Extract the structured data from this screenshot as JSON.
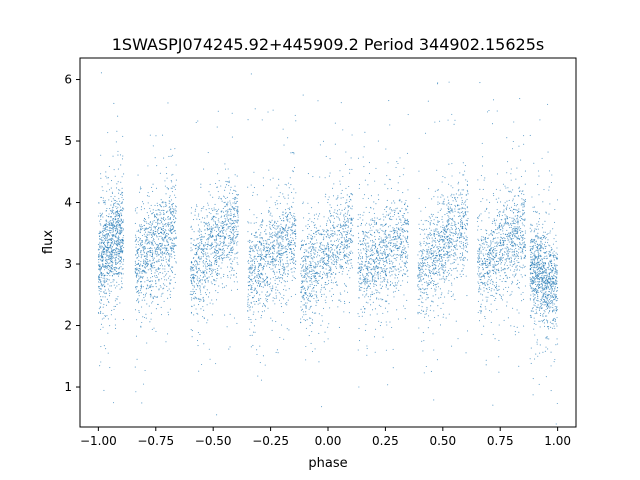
{
  "chart_data": {
    "type": "scatter",
    "title": "1SWASPJ074245.92+445909.2 Period 344902.15625s",
    "xlabel": "phase",
    "ylabel": "flux",
    "xlim": [
      -1.08,
      1.08
    ],
    "ylim": [
      0.35,
      6.35
    ],
    "xticks": [
      -1.0,
      -0.75,
      -0.5,
      -0.25,
      0.0,
      0.25,
      0.5,
      0.75,
      1.0
    ],
    "xtick_labels": [
      "−1.00",
      "−0.75",
      "−0.50",
      "−0.25",
      "0.00",
      "0.25",
      "0.50",
      "0.75",
      "1.00"
    ],
    "yticks": [
      1,
      2,
      3,
      4,
      5,
      6
    ],
    "ytick_labels": [
      "1",
      "2",
      "3",
      "4",
      "5",
      "6"
    ],
    "grid": false,
    "legend": "none",
    "point_color": "#1f77b4",
    "clusters": [
      {
        "phase_start": -1.0,
        "phase_end": -0.89,
        "flux_start": 3.05,
        "flux_end": 3.55
      },
      {
        "phase_start": -0.84,
        "phase_end": -0.66,
        "flux_start": 2.95,
        "flux_end": 3.6
      },
      {
        "phase_start": -0.6,
        "phase_end": -0.39,
        "flux_start": 2.85,
        "flux_end": 3.75
      },
      {
        "phase_start": -0.35,
        "phase_end": -0.14,
        "flux_start": 2.8,
        "flux_end": 3.45
      },
      {
        "phase_start": -0.12,
        "phase_end": 0.11,
        "flux_start": 2.75,
        "flux_end": 3.55
      },
      {
        "phase_start": 0.13,
        "phase_end": 0.35,
        "flux_start": 2.9,
        "flux_end": 3.45
      },
      {
        "phase_start": 0.39,
        "phase_end": 0.61,
        "flux_start": 2.85,
        "flux_end": 3.75
      },
      {
        "phase_start": 0.65,
        "phase_end": 0.86,
        "flux_start": 2.95,
        "flux_end": 3.6
      },
      {
        "phase_start": 0.88,
        "phase_end": 1.0,
        "flux_start": 2.9,
        "flux_end": 2.6
      }
    ]
  }
}
